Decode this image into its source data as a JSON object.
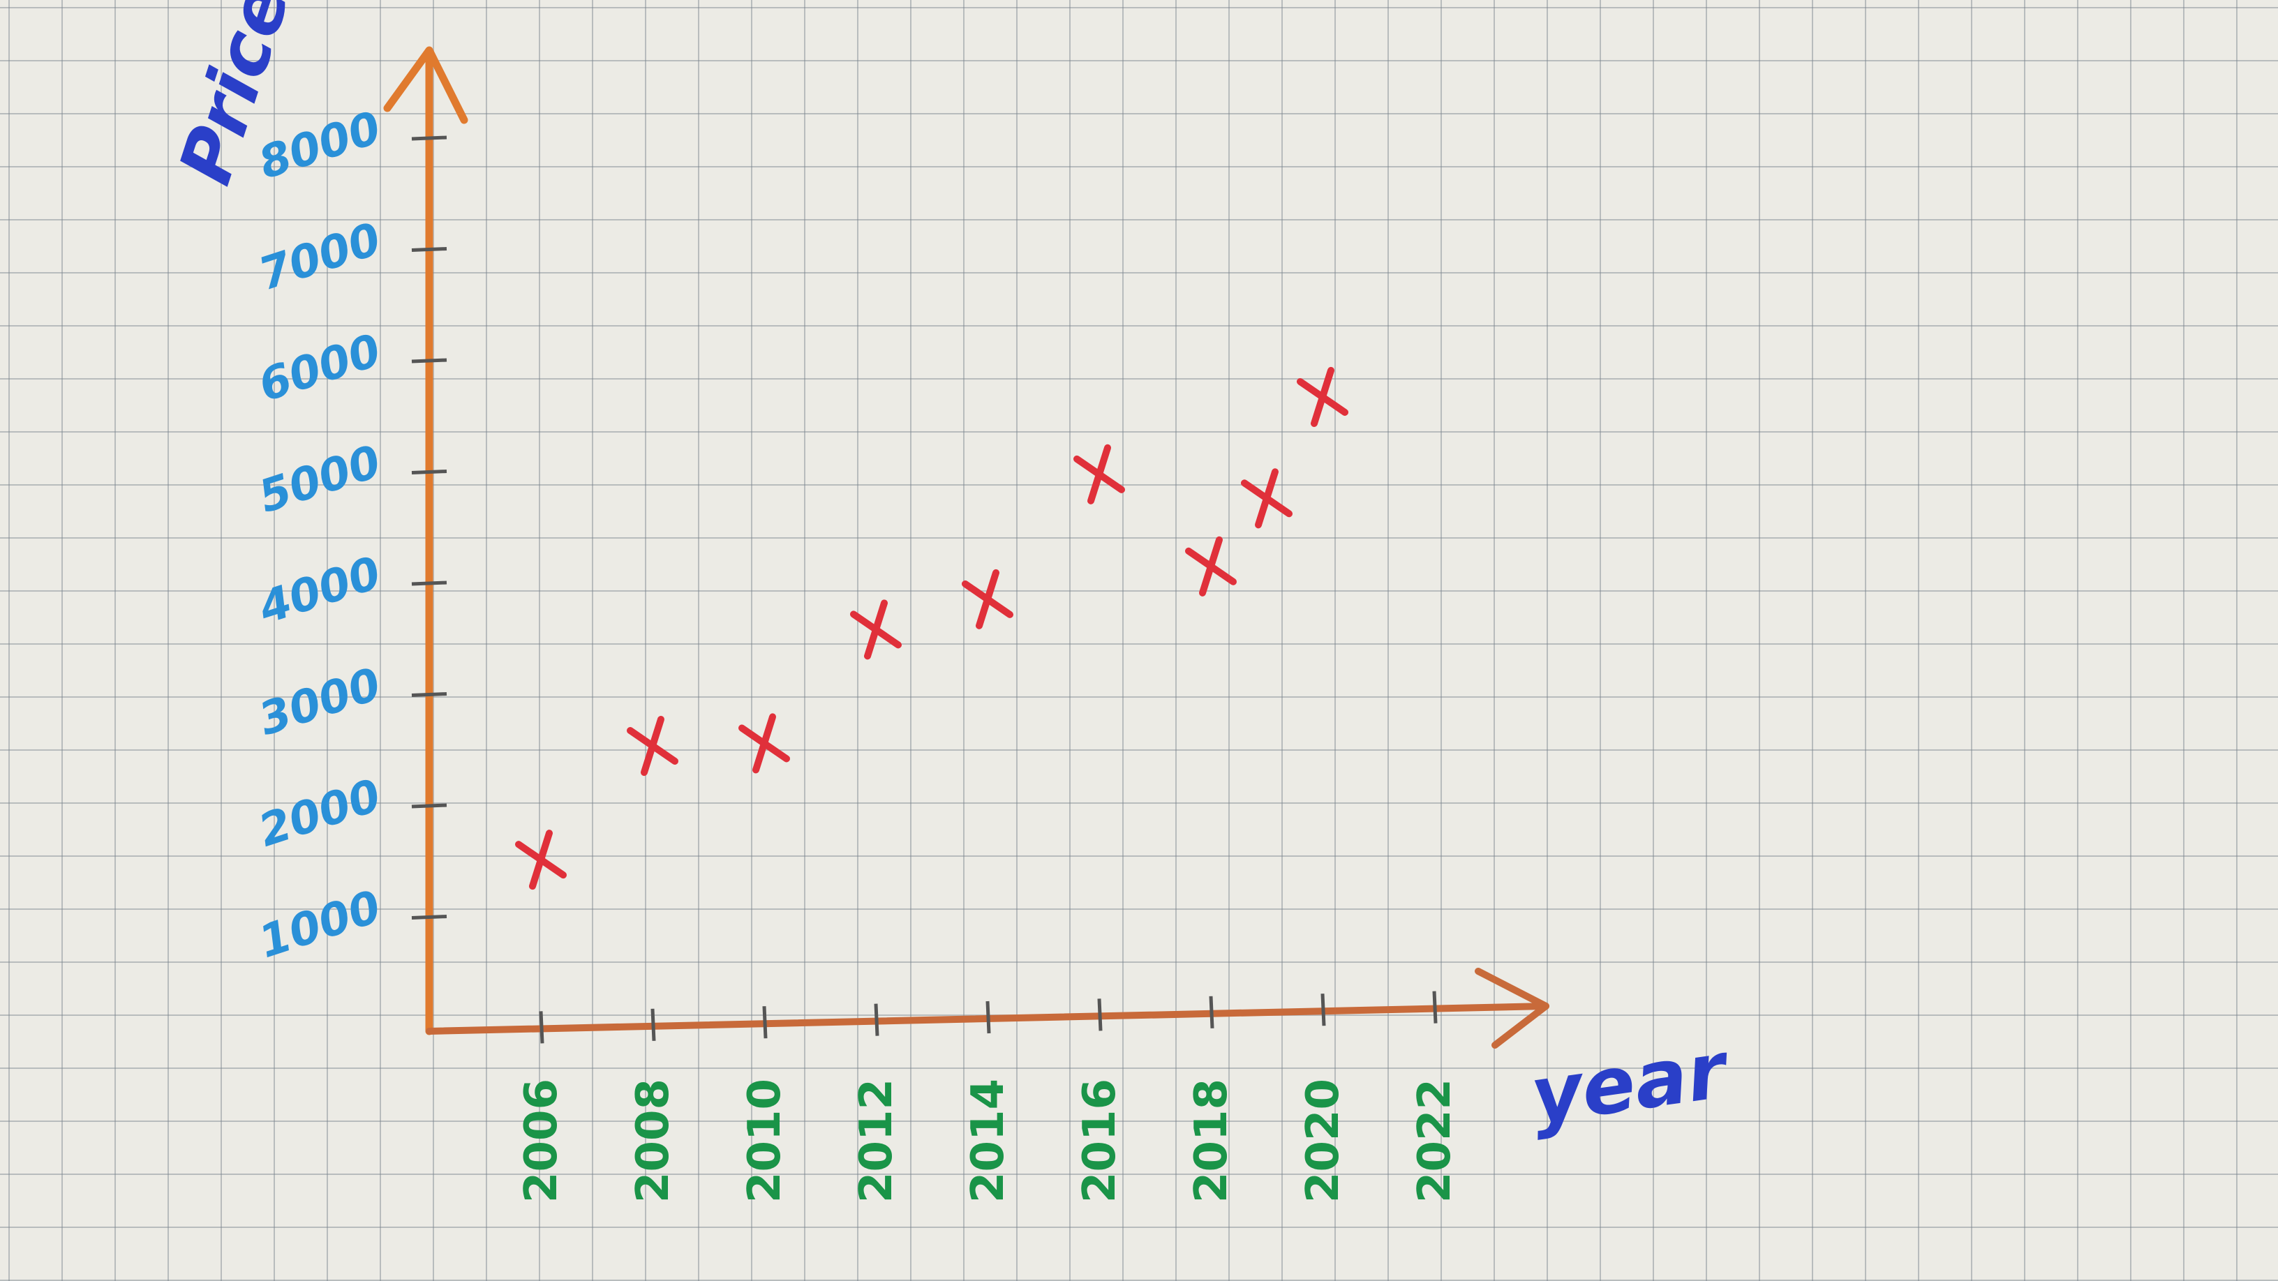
{
  "chart_data": {
    "type": "scatter",
    "title": "",
    "xlabel": "year",
    "ylabel": "Price",
    "x_ticks": [
      "2006",
      "2008",
      "2010",
      "2012",
      "2014",
      "2016",
      "2018",
      "2020",
      "2022"
    ],
    "y_ticks": [
      "1000",
      "2000",
      "3000",
      "4000",
      "5000",
      "6000",
      "7000",
      "8000"
    ],
    "xlim": [
      2004,
      2024
    ],
    "ylim": [
      0,
      8000
    ],
    "grid": true,
    "series": [
      {
        "x": [
          2006,
          2008,
          2010,
          2012,
          2014,
          2016,
          2018,
          2019,
          2020
        ],
        "y": [
          1500,
          2500,
          2500,
          3500,
          3750,
          4850,
          4000,
          4600,
          5500
        ]
      }
    ],
    "colors": {
      "axis": "#e07a2e",
      "x_axis": "#c86a3a",
      "marker": "#e0303a",
      "y_ticks": "#2a90d8",
      "x_ticks": "#1a9448",
      "titles": "#2a3fc8"
    }
  }
}
